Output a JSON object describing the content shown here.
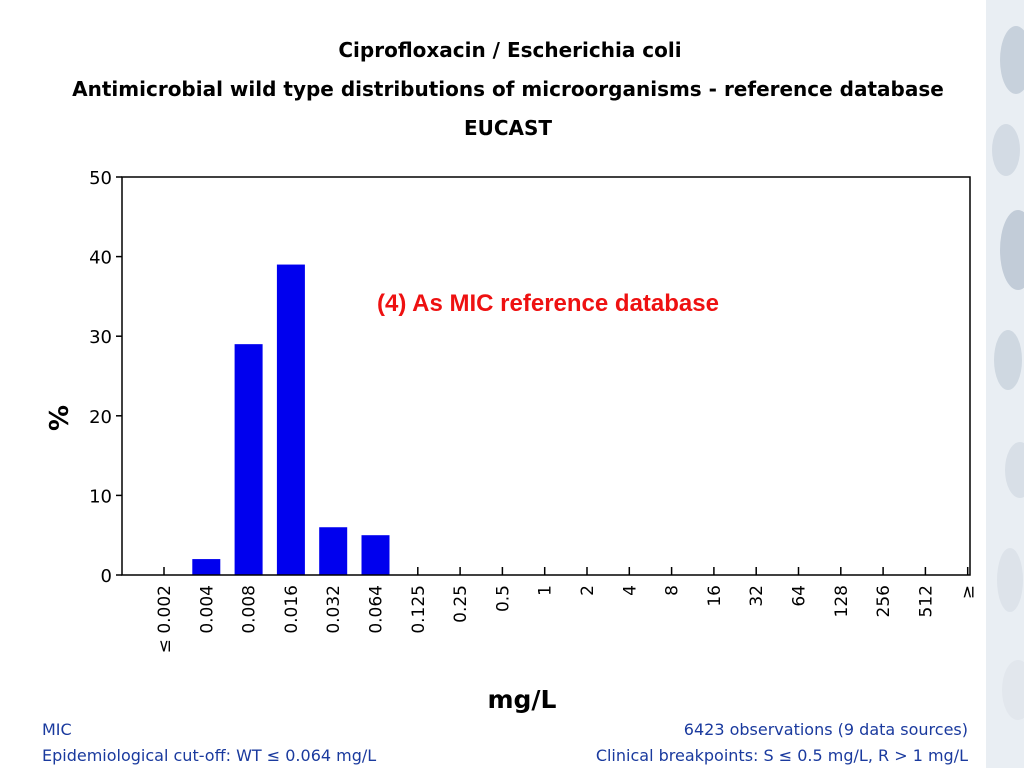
{
  "chart_data": {
    "type": "bar",
    "title_lines": [
      "Ciprofloxacin / Escherichia coli",
      "Antimicrobial wild type distributions of microorganisms - reference database",
      "EUCAST"
    ],
    "ylabel": "%",
    "xlabel": "mg/L",
    "ylim": [
      0,
      50
    ],
    "yticks": [
      0,
      10,
      20,
      30,
      40,
      50
    ],
    "categories": [
      "≤ 0.002",
      "0.004",
      "0.008",
      "0.016",
      "0.032",
      "0.064",
      "0.125",
      "0.25",
      "0.5",
      "1",
      "2",
      "4",
      "8",
      "16",
      "32",
      "64",
      "128",
      "256",
      "512",
      "≥"
    ],
    "values": [
      0,
      2,
      29,
      39,
      6,
      5,
      0,
      0,
      0,
      0,
      0,
      0,
      0,
      0,
      0,
      0,
      0,
      0,
      0,
      0
    ],
    "bar_color": "#0000ee",
    "annotation": "(4) As MIC reference database",
    "annotation_color": "#ee1111",
    "footer_left": [
      "MIC",
      "Epidemiological cut-off: WT ≤ 0.064 mg/L"
    ],
    "footer_right": [
      "6423 observations (9 data sources)",
      "Clinical breakpoints: S ≤ 0.5 mg/L,  R > 1 mg/L"
    ],
    "footer_color": "#1a3a9e"
  }
}
